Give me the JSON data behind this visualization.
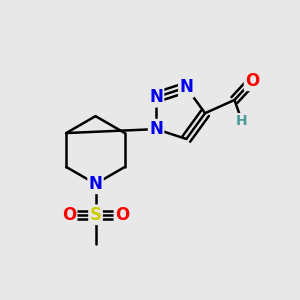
{
  "bg_color": "#e8e8e8",
  "atom_colors": {
    "C": "#000000",
    "N": "#0000ee",
    "O": "#ff0000",
    "S": "#cccc00",
    "H": "#4a9a9a"
  },
  "bond_color": "#000000",
  "bond_width": 1.8,
  "font_size_atom": 12,
  "font_size_H": 10
}
